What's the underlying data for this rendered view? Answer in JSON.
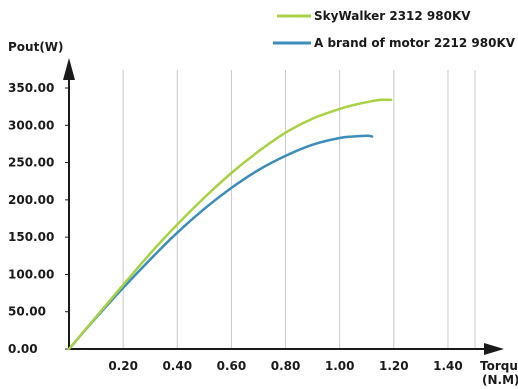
{
  "chart_data": {
    "type": "line",
    "xlabel": "Torque",
    "xunit": "(N.M)",
    "ylabel": "Pout(W)",
    "xlim": [
      0,
      1.5
    ],
    "ylim": [
      0,
      350
    ],
    "x_ticks": [
      "0.20",
      "0.40",
      "0.60",
      "0.80",
      "1.00",
      "1.20",
      "1.40"
    ],
    "y_ticks": [
      "0.00",
      "50.00",
      "100.00",
      "150.00",
      "200.00",
      "250.00",
      "300.00",
      "350.00"
    ],
    "grid": "vertical",
    "legend_position": "top-right",
    "series": [
      {
        "name": "SkyWalker 2312  980KV",
        "color": "#a8d143",
        "x": [
          0,
          0.1,
          0.2,
          0.3,
          0.4,
          0.5,
          0.6,
          0.7,
          0.8,
          0.9,
          1.0,
          1.05,
          1.1,
          1.15,
          1.19
        ],
        "y": [
          0,
          43,
          86,
          128,
          167,
          203,
          236,
          265,
          290,
          309,
          322,
          327,
          331,
          334,
          334
        ]
      },
      {
        "name": "A brand of motor 2212  980KV",
        "color": "#3c8dbc",
        "x": [
          0,
          0.1,
          0.2,
          0.3,
          0.4,
          0.5,
          0.6,
          0.7,
          0.8,
          0.9,
          1.0,
          1.05,
          1.1,
          1.12
        ],
        "y": [
          0,
          42,
          82,
          120,
          156,
          188,
          216,
          240,
          259,
          274,
          283,
          285,
          286,
          285
        ]
      }
    ]
  }
}
